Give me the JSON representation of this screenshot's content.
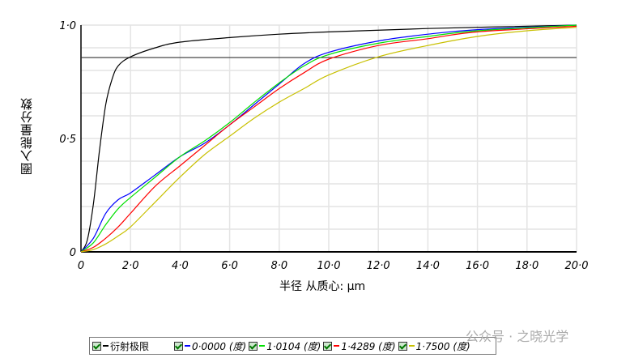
{
  "chart_data": {
    "type": "line",
    "title": "",
    "xlabel": "半径 从质心: μm",
    "ylabel": "圈入能量分数",
    "xlim": [
      0,
      20
    ],
    "ylim": [
      0,
      1
    ],
    "grid": true,
    "legend_placement": "bottom",
    "x_ticks": [
      "0",
      "2·0",
      "4·0",
      "6·0",
      "8·0",
      "10·0",
      "12·0",
      "14·0",
      "16·0",
      "18·0",
      "20·0"
    ],
    "y_ticks": [
      "0",
      "0·5",
      "1·0"
    ],
    "reference_line_y": 0.857,
    "series": [
      {
        "name": "衍射极限",
        "color": "#000000",
        "x": [
          0,
          0.25,
          0.5,
          0.75,
          1,
          1.25,
          1.5,
          2,
          3,
          4,
          6,
          8,
          10,
          14,
          20
        ],
        "y": [
          0,
          0.05,
          0.21,
          0.45,
          0.65,
          0.76,
          0.82,
          0.86,
          0.9,
          0.925,
          0.945,
          0.96,
          0.97,
          0.985,
          1.0
        ]
      },
      {
        "name": "0·0000 (度)",
        "color": "#0000ff",
        "x": [
          0,
          0.5,
          1,
          1.5,
          2,
          3,
          4,
          5,
          6,
          7,
          8,
          9,
          10,
          12,
          14,
          16,
          20
        ],
        "y": [
          0,
          0.06,
          0.17,
          0.23,
          0.26,
          0.34,
          0.42,
          0.48,
          0.56,
          0.65,
          0.74,
          0.83,
          0.88,
          0.93,
          0.96,
          0.98,
          1.0
        ]
      },
      {
        "name": "1·0104 (度)",
        "color": "#00e000",
        "x": [
          0,
          0.5,
          1,
          1.5,
          2,
          3,
          4,
          5,
          6,
          7,
          8,
          9,
          10,
          12,
          14,
          16,
          20
        ],
        "y": [
          0,
          0.04,
          0.12,
          0.19,
          0.24,
          0.33,
          0.42,
          0.49,
          0.57,
          0.66,
          0.745,
          0.82,
          0.87,
          0.92,
          0.95,
          0.975,
          1.0
        ]
      },
      {
        "name": "1·4289 (度)",
        "color": "#ff0000",
        "x": [
          0,
          0.5,
          1,
          1.5,
          2,
          3,
          4,
          5,
          6,
          7,
          8,
          9,
          10,
          12,
          14,
          16,
          20
        ],
        "y": [
          0,
          0.02,
          0.06,
          0.11,
          0.17,
          0.29,
          0.38,
          0.47,
          0.56,
          0.64,
          0.72,
          0.79,
          0.85,
          0.91,
          0.94,
          0.97,
          0.995
        ]
      },
      {
        "name": "1·7500 (度)",
        "color": "#c8c000",
        "x": [
          0,
          0.5,
          1,
          1.5,
          2,
          3,
          4,
          5,
          6,
          7,
          8,
          9,
          10,
          12,
          14,
          16,
          18,
          20
        ],
        "y": [
          0,
          0.01,
          0.035,
          0.07,
          0.11,
          0.22,
          0.33,
          0.43,
          0.51,
          0.59,
          0.66,
          0.72,
          0.78,
          0.86,
          0.91,
          0.95,
          0.975,
          0.99
        ]
      }
    ]
  },
  "watermark": "公众号 · 之晓光学"
}
